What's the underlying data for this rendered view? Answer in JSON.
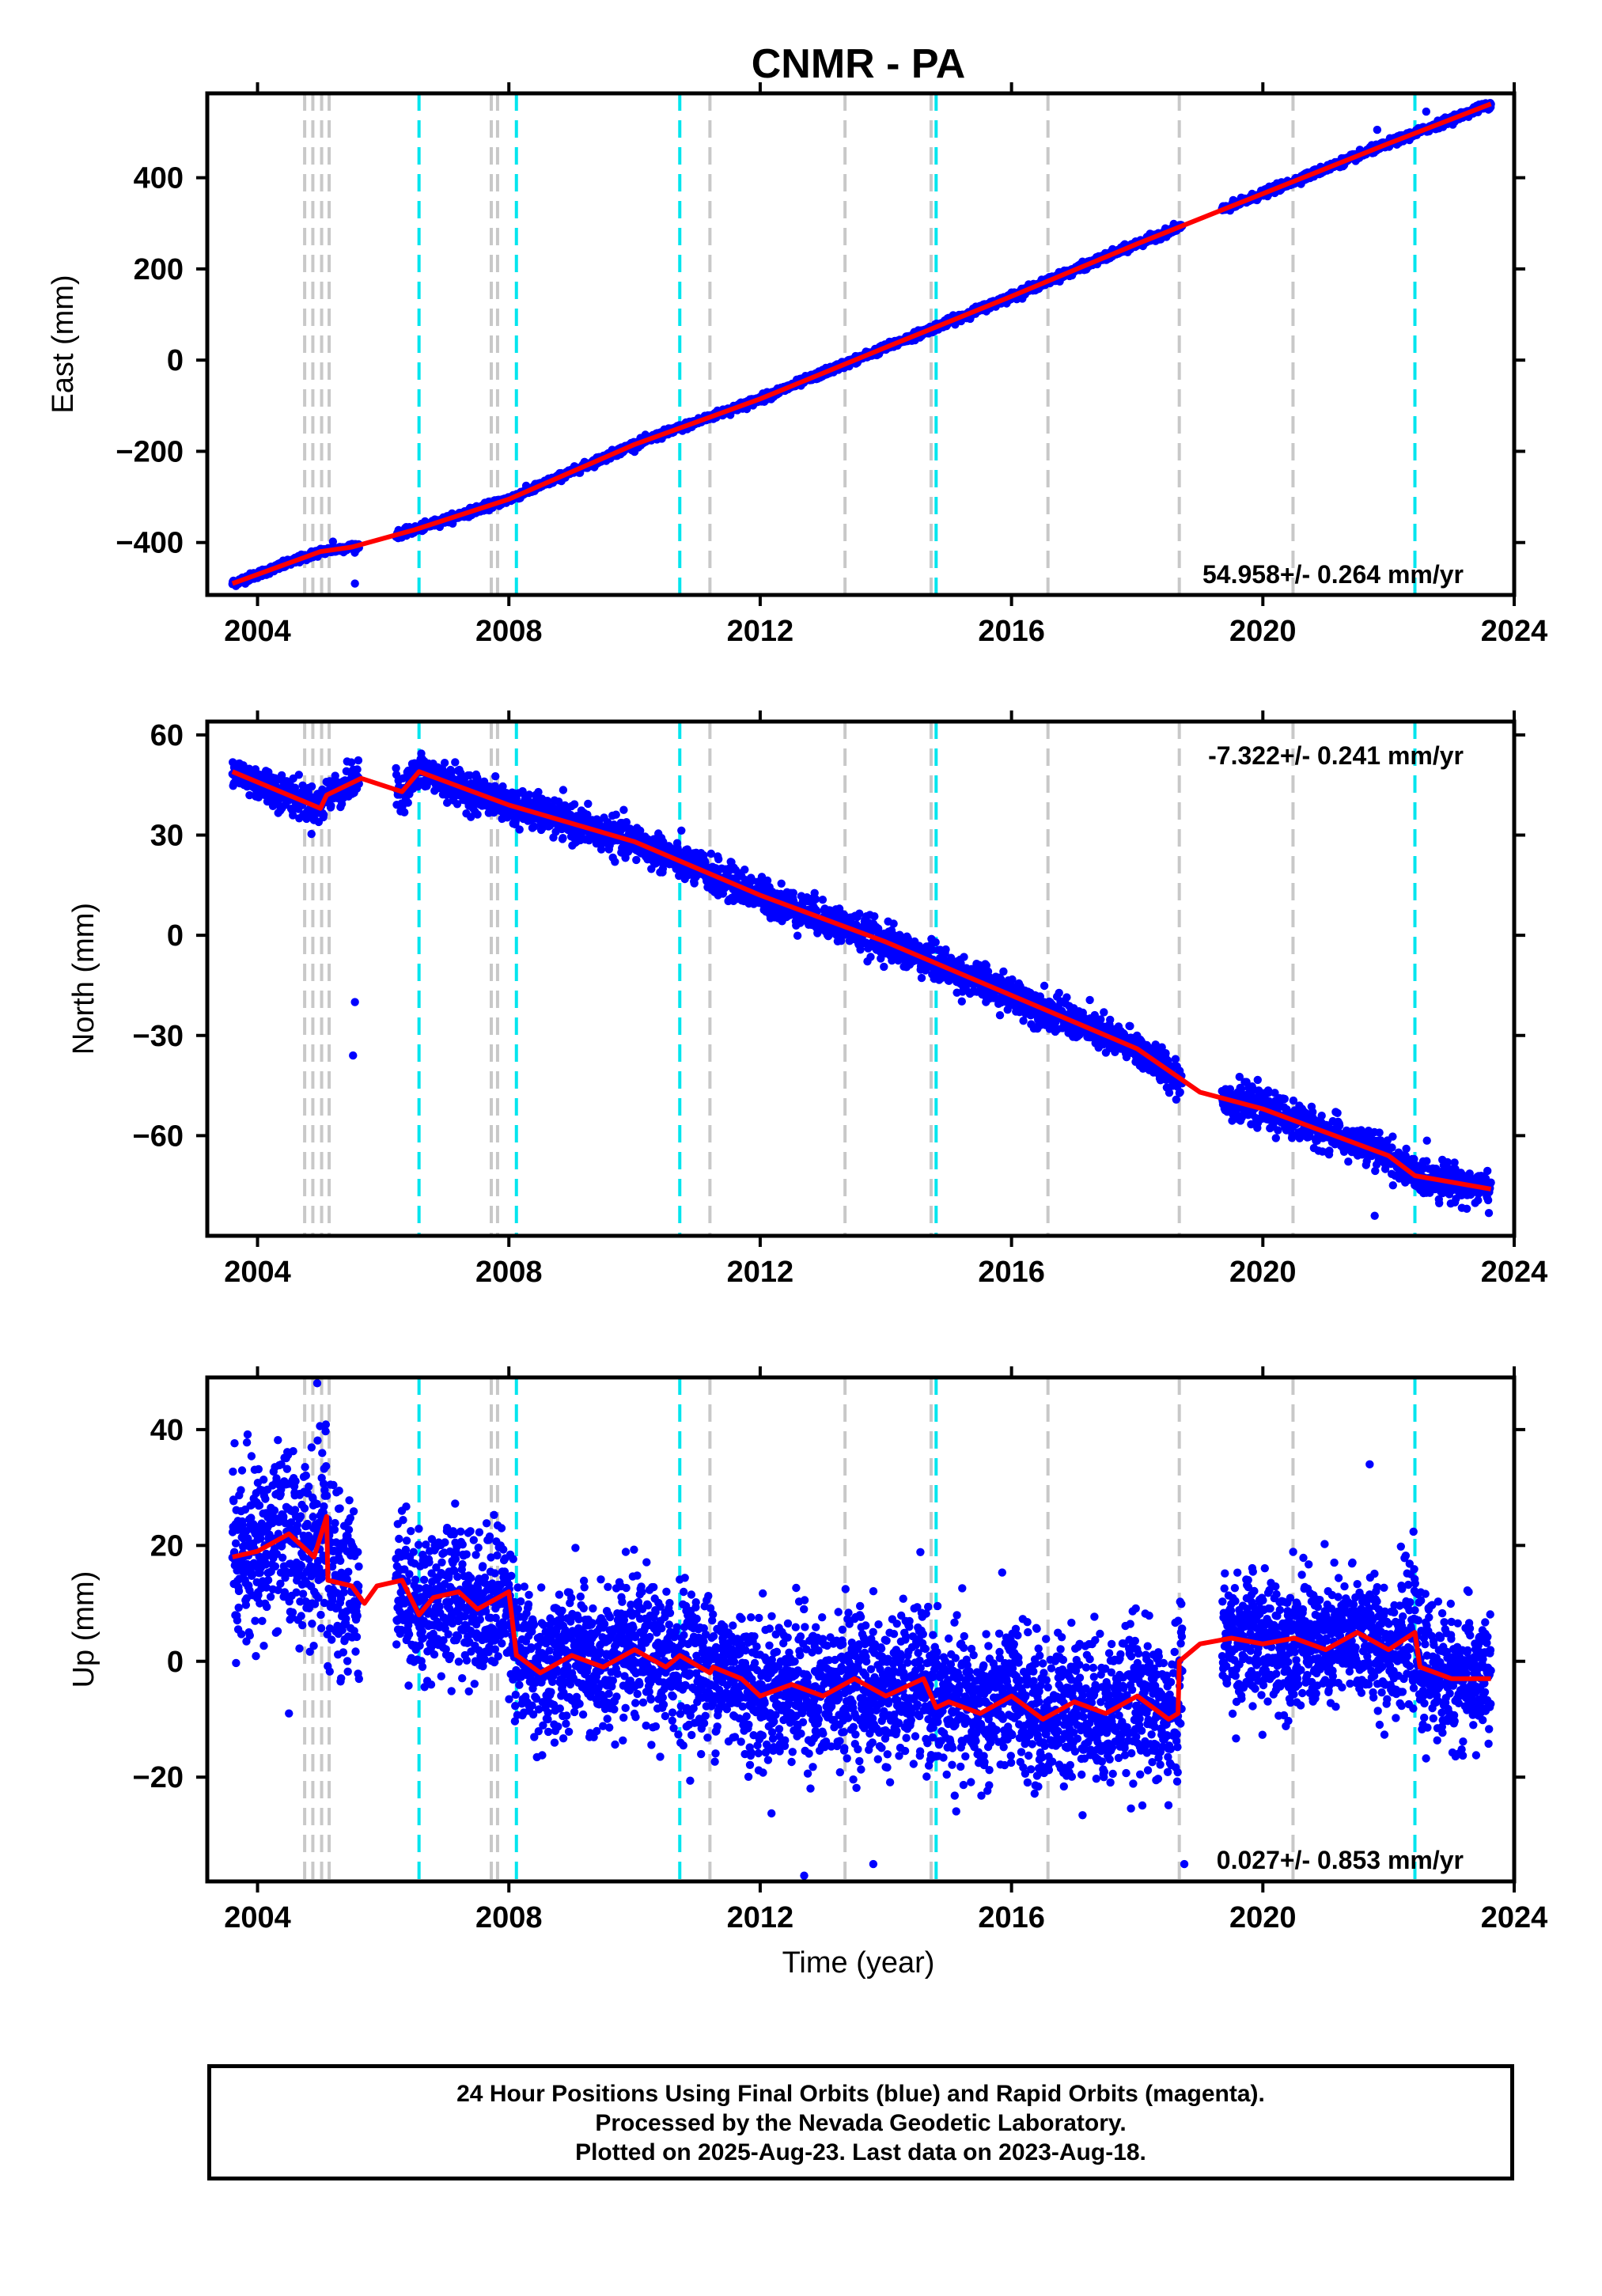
{
  "title": "CNMR - PA",
  "xlabel": "Time (year)",
  "footnote": [
    "24 Hour Positions Using Final Orbits (blue) and Rapid Orbits (magenta).",
    "Processed by the Nevada Geodetic Laboratory.",
    "Plotted on 2025-Aug-23. Last data on 2023-Aug-18."
  ],
  "colors": {
    "data": "#0000ff",
    "model": "#ff0000",
    "gray_lines": "#c8c8c8",
    "cyan_lines": "#00e5ee"
  },
  "vlines": {
    "gray": [
      2004.75,
      2004.88,
      2005.02,
      2005.14,
      2007.72,
      2007.82,
      2011.2,
      2013.35,
      2014.72,
      2016.58,
      2018.67,
      2020.48
    ],
    "cyan": [
      2006.57,
      2008.12,
      2010.72,
      2014.8,
      2022.42
    ]
  },
  "chart_data": [
    {
      "type": "scatter",
      "name": "east",
      "ylabel": "East (mm)",
      "rate_label": "54.958+/- 0.264 mm/yr",
      "xlim": [
        2003.2,
        2024.0
      ],
      "ylim": [
        -515,
        585
      ],
      "xticks": [
        2004,
        2008,
        2012,
        2016,
        2020,
        2024
      ],
      "yticks": [
        -400,
        -200,
        0,
        200,
        400
      ],
      "data_x_range": [
        2003.6,
        2023.63
      ],
      "trend": {
        "x": [
          2003.6,
          2005.0,
          2005.5,
          2006.5,
          2008.0,
          2010.0,
          2012.0,
          2014.0,
          2016.0,
          2018.0,
          2020.0,
          2022.0,
          2023.63
        ],
        "y": [
          -490,
          -420,
          -410,
          -372,
          -305,
          -185,
          -85,
          28,
          140,
          255,
          365,
          475,
          562
        ]
      },
      "outliers": {
        "x": [
          2005.55,
          2005.2,
          2021.82,
          2022.6
        ],
        "y": [
          -490,
          -398,
          505,
          545
        ]
      }
    },
    {
      "type": "scatter",
      "name": "north",
      "ylabel": "North (mm)",
      "rate_label": "-7.322+/- 0.241 mm/yr",
      "xlim": [
        2003.2,
        2024.0
      ],
      "ylim": [
        -90,
        64
      ],
      "xticks": [
        2004,
        2008,
        2012,
        2016,
        2020,
        2024
      ],
      "yticks": [
        -60,
        -30,
        0,
        30,
        60
      ],
      "data_x_range": [
        2003.6,
        2023.63
      ],
      "trend": {
        "x": [
          2003.6,
          2005.0,
          2005.1,
          2005.65,
          2006.3,
          2006.57,
          2007.0,
          2008.0,
          2010.0,
          2012.0,
          2014.0,
          2016.0,
          2018.0,
          2019.0,
          2020.0,
          2022.0,
          2022.42,
          2023.63
        ],
        "y": [
          49,
          38,
          42,
          47,
          43,
          49,
          46,
          39,
          28,
          12,
          -2,
          -18,
          -34,
          -47,
          -52,
          -66,
          -72,
          -76
        ]
      },
      "outliers": {
        "x": [
          2005.55,
          2005.52,
          2021.78
        ],
        "y": [
          -20,
          -36,
          -84
        ]
      }
    },
    {
      "type": "scatter",
      "name": "up",
      "ylabel": "Up (mm)",
      "rate_label": "0.027+/- 0.853 mm/yr",
      "xlim": [
        2003.2,
        2024.0
      ],
      "ylim": [
        -38,
        49
      ],
      "xticks": [
        2004,
        2008,
        2012,
        2016,
        2020,
        2024
      ],
      "yticks": [
        -20,
        0,
        20,
        40
      ],
      "data_x_range": [
        2003.6,
        2023.63
      ],
      "trend": {
        "x": [
          2003.6,
          2004.0,
          2004.5,
          2004.9,
          2005.1,
          2005.12,
          2005.5,
          2005.7,
          2005.9,
          2006.3,
          2006.57,
          2006.8,
          2007.2,
          2007.5,
          2008.0,
          2008.12,
          2008.13,
          2008.5,
          2009.0,
          2009.5,
          2010.0,
          2010.5,
          2010.72,
          2011.2,
          2011.25,
          2011.7,
          2012.0,
          2012.5,
          2013.0,
          2013.5,
          2014.0,
          2014.6,
          2014.8,
          2015.0,
          2015.5,
          2016.0,
          2016.5,
          2017.0,
          2017.5,
          2018.0,
          2018.5,
          2018.65,
          2018.67,
          2019.0,
          2019.5,
          2020.0,
          2020.5,
          2021.0,
          2021.5,
          2022.0,
          2022.42,
          2022.5,
          2023.0,
          2023.63
        ],
        "y": [
          18,
          19,
          22,
          18,
          25,
          14,
          13,
          10,
          13,
          14,
          8,
          11,
          12,
          9,
          12,
          1,
          1,
          -2,
          1,
          -1,
          2,
          -1,
          1,
          -2,
          -1,
          -3,
          -6,
          -4,
          -6,
          -3,
          -6,
          -3,
          -8,
          -7,
          -9,
          -6,
          -10,
          -7,
          -9,
          -6,
          -10,
          -9,
          0,
          3,
          4,
          3,
          4,
          2,
          5,
          2,
          5,
          -1,
          -3,
          -3
        ]
      },
      "outliers": {
        "x": [
          2021.7,
          2004.5,
          2004.95,
          2012.7,
          2013.8,
          2018.75
        ],
        "y": [
          34,
          -9,
          48,
          -37,
          -35,
          -35
        ]
      }
    }
  ]
}
